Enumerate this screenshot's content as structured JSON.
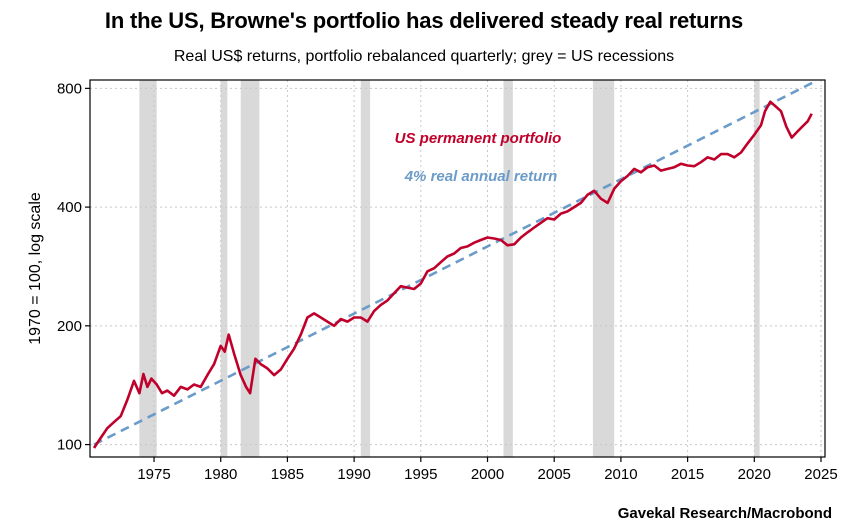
{
  "header": {
    "title": "In the US, Browne's portfolio has delivered steady real returns",
    "subtitle": "Real US$ returns, portfolio rebalanced quarterly; grey = US recessions"
  },
  "footer": {
    "source": "Gavekal Research/Macrobond"
  },
  "colors": {
    "portfolio": "#c0002a",
    "trend": "#6b9bc8",
    "recession": "#d9d9d9",
    "grid": "#c8c8c8"
  },
  "chart_data": {
    "type": "line",
    "title": "In the US, Browne's portfolio has delivered steady real returns",
    "subtitle": "Real US$ returns, portfolio rebalanced quarterly; grey = US recessions",
    "ylabel": "1970 = 100, log scale",
    "xlabel": "",
    "y_scale": "log",
    "ylim": [
      93,
      840
    ],
    "xlim": [
      1970.2,
      2025.3
    ],
    "y_ticks": [
      100,
      200,
      400,
      800
    ],
    "x_ticks": [
      1975,
      1980,
      1985,
      1990,
      1995,
      2000,
      2005,
      2010,
      2015,
      2020,
      2025
    ],
    "grid": true,
    "recessions": [
      [
        1973.9,
        1975.2
      ],
      [
        1980.0,
        1980.5
      ],
      [
        1981.5,
        1982.9
      ],
      [
        1990.5,
        1991.2
      ],
      [
        2001.2,
        2001.9
      ],
      [
        2007.9,
        2009.5
      ],
      [
        2020.0,
        2020.4
      ]
    ],
    "series": [
      {
        "name": "US permanent portfolio",
        "x": [
          1970.5,
          1971,
          1971.5,
          1972,
          1972.5,
          1973,
          1973.5,
          1973.9,
          1974.2,
          1974.5,
          1974.8,
          1975.2,
          1975.6,
          1976,
          1976.5,
          1977,
          1977.5,
          1978,
          1978.5,
          1979,
          1979.5,
          1980.0,
          1980.3,
          1980.6,
          1981,
          1981.5,
          1981.9,
          1982.2,
          1982.6,
          1983,
          1983.5,
          1984,
          1984.5,
          1985,
          1985.5,
          1986,
          1986.5,
          1987,
          1987.5,
          1988,
          1988.5,
          1989,
          1989.5,
          1990,
          1990.5,
          1991,
          1991.5,
          1992,
          1992.5,
          1993,
          1993.5,
          1994,
          1994.5,
          1995,
          1995.5,
          1996,
          1996.5,
          1997,
          1997.5,
          1998,
          1998.5,
          1999,
          1999.5,
          2000,
          2000.5,
          2001,
          2001.5,
          2002,
          2002.5,
          2003,
          2003.5,
          2004,
          2004.5,
          2005,
          2005.5,
          2006,
          2006.5,
          2007,
          2007.5,
          2008,
          2008.5,
          2009,
          2009.5,
          2010,
          2010.5,
          2011,
          2011.5,
          2012,
          2012.5,
          2013,
          2013.5,
          2014,
          2014.5,
          2015,
          2015.5,
          2016,
          2016.5,
          2017,
          2017.5,
          2018,
          2018.5,
          2019,
          2019.5,
          2020,
          2020.5,
          2020.8,
          2021.2,
          2021.6,
          2022,
          2022.4,
          2022.8,
          2023.2,
          2023.6,
          2024,
          2024.3
        ],
        "values": [
          98,
          104,
          110,
          114,
          118,
          130,
          145,
          135,
          151,
          140,
          147,
          142,
          135,
          137,
          133,
          140,
          138,
          142,
          140,
          150,
          160,
          178,
          172,
          190,
          170,
          150,
          140,
          135,
          165,
          160,
          156,
          150,
          155,
          165,
          175,
          190,
          210,
          215,
          210,
          205,
          200,
          208,
          205,
          210,
          210,
          205,
          218,
          226,
          232,
          242,
          252,
          250,
          248,
          256,
          275,
          280,
          290,
          300,
          305,
          315,
          318,
          325,
          330,
          335,
          333,
          330,
          320,
          322,
          335,
          345,
          355,
          365,
          375,
          372,
          385,
          390,
          400,
          410,
          430,
          440,
          420,
          410,
          445,
          465,
          480,
          500,
          490,
          505,
          510,
          495,
          500,
          505,
          515,
          510,
          508,
          520,
          535,
          528,
          545,
          545,
          535,
          550,
          580,
          610,
          645,
          700,
          740,
          720,
          700,
          640,
          600,
          620,
          640,
          660,
          690
        ]
      },
      {
        "name": "4% real annual return",
        "x": [
          1970.5,
          2024.5
        ],
        "values": [
          100,
          831
        ]
      }
    ],
    "annotations": [
      "US permanent portfolio",
      "4% real annual return"
    ]
  }
}
